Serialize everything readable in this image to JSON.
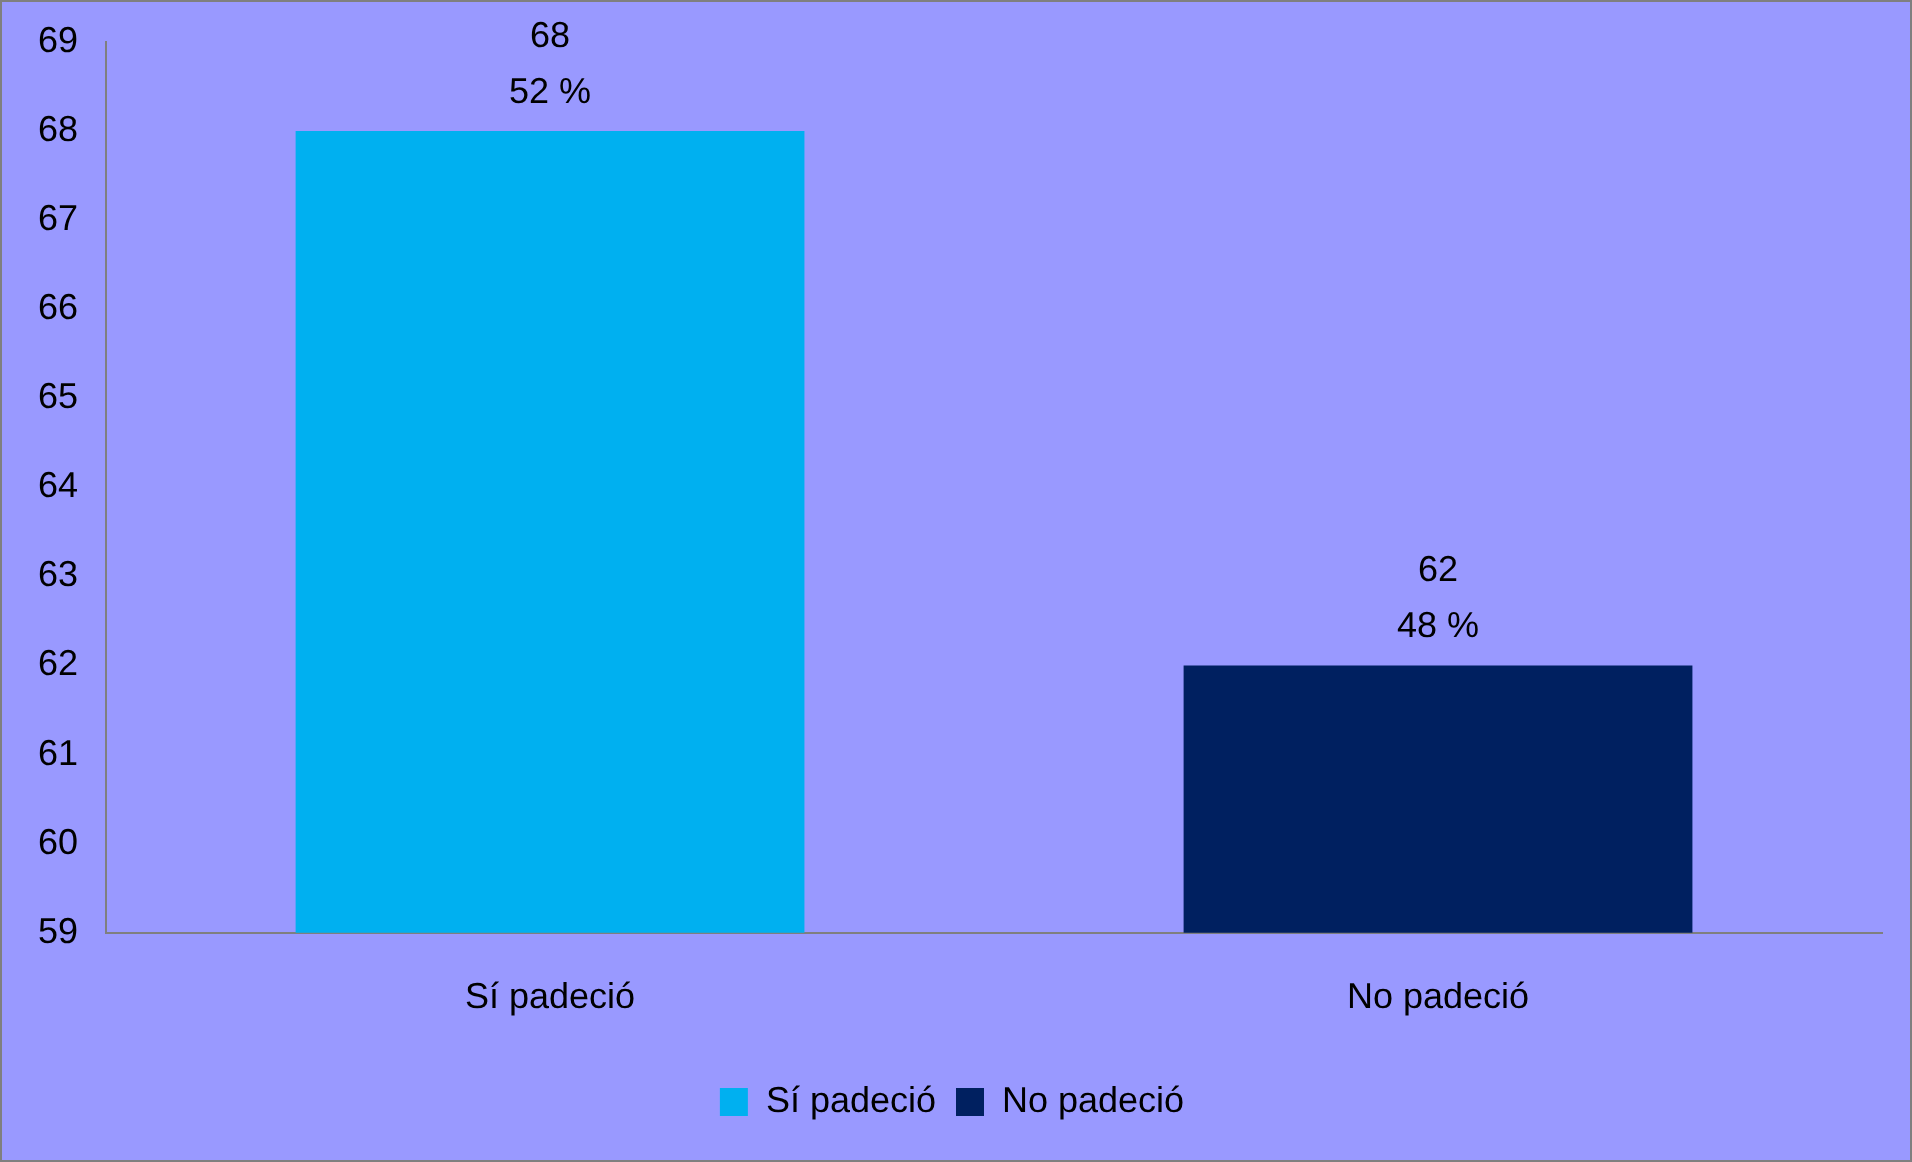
{
  "chart_data": {
    "type": "bar",
    "categories": [
      "Sí padeció",
      "No padeció"
    ],
    "series": [
      {
        "name": "Sí padeció",
        "color": "#00b0f0",
        "values": [
          68,
          null
        ],
        "value_labels": [
          "68\n52 %",
          null
        ]
      },
      {
        "name": "No padeció",
        "color": "#002060",
        "values": [
          null,
          62
        ],
        "value_labels": [
          null,
          "62\n48 %"
        ]
      }
    ],
    "ylim": [
      59,
      69
    ],
    "yticks": [
      59,
      60,
      61,
      62,
      63,
      64,
      65,
      66,
      67,
      68,
      69
    ],
    "grid": false,
    "legend": "bottom"
  }
}
